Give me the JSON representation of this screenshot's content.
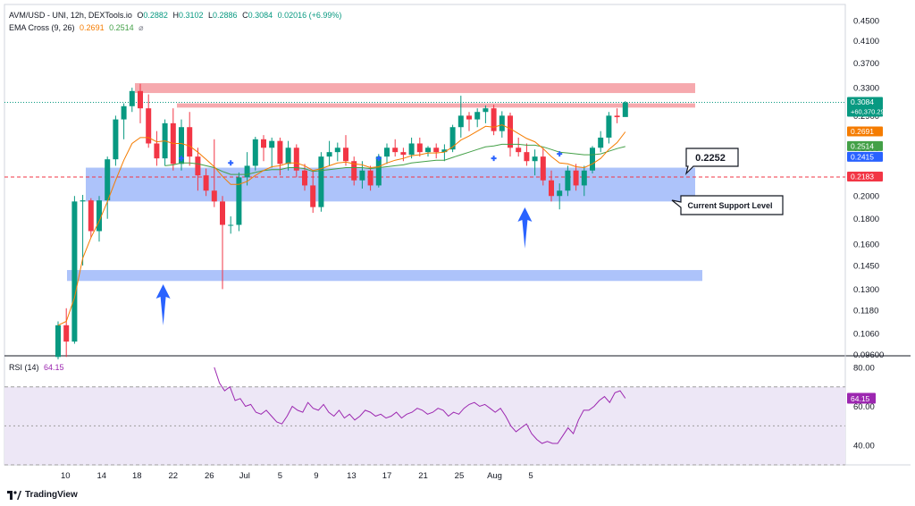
{
  "header": {
    "symbol": "AVM/USD - UNI, 12h, DEXTools.io",
    "o_label": "O",
    "o": "0.2882",
    "h_label": "H",
    "h": "0.3102",
    "l_label": "L",
    "l": "0.2886",
    "c_label": "C",
    "c": "0.3084",
    "change": "0.02016 (+6.99%)",
    "ema_label": "EMA Cross (9, 26)",
    "ema_fast": "0.2691",
    "ema_slow": "0.2514",
    "ema_icon": "⌀"
  },
  "rsi": {
    "label": "RSI (14)",
    "value": "64.15"
  },
  "footer": {
    "brand": "TradingView",
    "logo_icon": "tradingview-logo"
  },
  "colors": {
    "up": "#089981",
    "down": "#f23645",
    "ema_fast": "#f57c00",
    "ema_slow": "#43a047",
    "rsi": "#9c27b0",
    "support": "#a4bdf9",
    "resistance": "#f5a0a5",
    "arrow": "#2962ff"
  },
  "chart_data": [
    {
      "type": "candlestick",
      "scale": "log",
      "x_tick_labels": [
        "10",
        "14",
        "18",
        "22",
        "26",
        "Jul",
        "5",
        "9",
        "13",
        "17",
        "21",
        "25",
        "Aug",
        "5"
      ],
      "y_tick_labels": [
        "0.4500",
        "0.4100",
        "0.3700",
        "0.3300",
        "0.2900",
        "0.2500",
        "0.2000",
        "0.1800",
        "0.1600",
        "0.1450",
        "0.1300",
        "0.1180",
        "0.1060",
        "0.09600"
      ],
      "ylim": [
        0.0955,
        0.485
      ],
      "price_labels": [
        {
          "value": "0.3084",
          "sub": "+60,370.29%",
          "color": "#089981"
        },
        {
          "value": "0.2691",
          "color": "#f57c00"
        },
        {
          "value": "0.2514",
          "color": "#43a047"
        },
        {
          "value": "0.2415",
          "color": "#2962ff"
        },
        {
          "value": "0.2183",
          "color": "#f23645"
        }
      ],
      "annotations": [
        {
          "text": "0.2252",
          "type": "callout"
        },
        {
          "text": "Current Support Level",
          "type": "callout"
        }
      ],
      "zones": [
        {
          "kind": "resistance",
          "from_bar": 0,
          "to_bar": 69,
          "low": 0.322,
          "high": 0.337
        },
        {
          "kind": "resistance",
          "from_bar": 6,
          "to_bar": 69,
          "low": 0.301,
          "high": 0.307
        },
        {
          "kind": "support",
          "from_bar": 1,
          "to_bar": 69,
          "low": 0.195,
          "high": 0.228
        },
        {
          "kind": "support",
          "from_bar": -4,
          "to_bar": 70,
          "low": 0.135,
          "high": 0.142
        }
      ],
      "arrows": [
        {
          "bar": 13,
          "value": 0.135
        },
        {
          "bar": 57,
          "value": 0.189
        }
      ],
      "markers": [
        {
          "bar": 15,
          "value": 0.238
        },
        {
          "bar": 21,
          "value": 0.233
        },
        {
          "bar": 39,
          "value": 0.238
        },
        {
          "bar": 53,
          "value": 0.238
        },
        {
          "bar": 61,
          "value": 0.243
        }
      ],
      "last_price_line": 0.3084,
      "dashed_level": 0.2183,
      "candles": [
        {
          "o": 0.095,
          "h": 0.112,
          "l": 0.094,
          "c": 0.11
        },
        {
          "o": 0.11,
          "h": 0.119,
          "l": 0.095,
          "c": 0.102
        },
        {
          "o": 0.102,
          "h": 0.2,
          "l": 0.101,
          "c": 0.195
        },
        {
          "o": 0.195,
          "h": 0.201,
          "l": 0.145,
          "c": 0.196
        },
        {
          "o": 0.196,
          "h": 0.198,
          "l": 0.165,
          "c": 0.17
        },
        {
          "o": 0.17,
          "h": 0.2,
          "l": 0.162,
          "c": 0.196
        },
        {
          "o": 0.196,
          "h": 0.24,
          "l": 0.18,
          "c": 0.237
        },
        {
          "o": 0.237,
          "h": 0.29,
          "l": 0.23,
          "c": 0.285
        },
        {
          "o": 0.285,
          "h": 0.307,
          "l": 0.26,
          "c": 0.303
        },
        {
          "o": 0.303,
          "h": 0.33,
          "l": 0.295,
          "c": 0.325
        },
        {
          "o": 0.325,
          "h": 0.336,
          "l": 0.28,
          "c": 0.3
        },
        {
          "o": 0.3,
          "h": 0.32,
          "l": 0.25,
          "c": 0.255
        },
        {
          "o": 0.255,
          "h": 0.27,
          "l": 0.23,
          "c": 0.238
        },
        {
          "o": 0.238,
          "h": 0.285,
          "l": 0.23,
          "c": 0.28
        },
        {
          "o": 0.28,
          "h": 0.3,
          "l": 0.225,
          "c": 0.232
        },
        {
          "o": 0.232,
          "h": 0.285,
          "l": 0.225,
          "c": 0.275
        },
        {
          "o": 0.275,
          "h": 0.295,
          "l": 0.23,
          "c": 0.24
        },
        {
          "o": 0.24,
          "h": 0.25,
          "l": 0.205,
          "c": 0.22
        },
        {
          "o": 0.22,
          "h": 0.227,
          "l": 0.2,
          "c": 0.205
        },
        {
          "o": 0.205,
          "h": 0.26,
          "l": 0.19,
          "c": 0.195
        },
        {
          "o": 0.195,
          "h": 0.2,
          "l": 0.13,
          "c": 0.175
        },
        {
          "o": 0.175,
          "h": 0.182,
          "l": 0.168,
          "c": 0.175
        },
        {
          "o": 0.175,
          "h": 0.223,
          "l": 0.17,
          "c": 0.218
        },
        {
          "o": 0.218,
          "h": 0.245,
          "l": 0.21,
          "c": 0.23
        },
        {
          "o": 0.23,
          "h": 0.263,
          "l": 0.225,
          "c": 0.26
        },
        {
          "o": 0.26,
          "h": 0.265,
          "l": 0.235,
          "c": 0.25
        },
        {
          "o": 0.25,
          "h": 0.262,
          "l": 0.228,
          "c": 0.258
        },
        {
          "o": 0.258,
          "h": 0.262,
          "l": 0.22,
          "c": 0.232
        },
        {
          "o": 0.232,
          "h": 0.258,
          "l": 0.225,
          "c": 0.25
        },
        {
          "o": 0.25,
          "h": 0.254,
          "l": 0.218,
          "c": 0.225
        },
        {
          "o": 0.225,
          "h": 0.232,
          "l": 0.205,
          "c": 0.21
        },
        {
          "o": 0.21,
          "h": 0.225,
          "l": 0.185,
          "c": 0.19
        },
        {
          "o": 0.19,
          "h": 0.245,
          "l": 0.186,
          "c": 0.24
        },
        {
          "o": 0.24,
          "h": 0.258,
          "l": 0.23,
          "c": 0.245
        },
        {
          "o": 0.245,
          "h": 0.256,
          "l": 0.235,
          "c": 0.25
        },
        {
          "o": 0.25,
          "h": 0.265,
          "l": 0.23,
          "c": 0.235
        },
        {
          "o": 0.235,
          "h": 0.24,
          "l": 0.21,
          "c": 0.215
        },
        {
          "o": 0.215,
          "h": 0.235,
          "l": 0.207,
          "c": 0.225
        },
        {
          "o": 0.225,
          "h": 0.23,
          "l": 0.205,
          "c": 0.21
        },
        {
          "o": 0.21,
          "h": 0.243,
          "l": 0.208,
          "c": 0.24
        },
        {
          "o": 0.24,
          "h": 0.255,
          "l": 0.232,
          "c": 0.25
        },
        {
          "o": 0.25,
          "h": 0.26,
          "l": 0.24,
          "c": 0.245
        },
        {
          "o": 0.245,
          "h": 0.25,
          "l": 0.235,
          "c": 0.242
        },
        {
          "o": 0.242,
          "h": 0.262,
          "l": 0.238,
          "c": 0.255
        },
        {
          "o": 0.255,
          "h": 0.262,
          "l": 0.24,
          "c": 0.245
        },
        {
          "o": 0.245,
          "h": 0.252,
          "l": 0.24,
          "c": 0.25
        },
        {
          "o": 0.25,
          "h": 0.255,
          "l": 0.238,
          "c": 0.245
        },
        {
          "o": 0.245,
          "h": 0.254,
          "l": 0.235,
          "c": 0.248
        },
        {
          "o": 0.248,
          "h": 0.278,
          "l": 0.245,
          "c": 0.275
        },
        {
          "o": 0.275,
          "h": 0.318,
          "l": 0.262,
          "c": 0.29
        },
        {
          "o": 0.29,
          "h": 0.295,
          "l": 0.27,
          "c": 0.285
        },
        {
          "o": 0.285,
          "h": 0.3,
          "l": 0.275,
          "c": 0.295
        },
        {
          "o": 0.295,
          "h": 0.304,
          "l": 0.28,
          "c": 0.3
        },
        {
          "o": 0.3,
          "h": 0.305,
          "l": 0.265,
          "c": 0.27
        },
        {
          "o": 0.27,
          "h": 0.296,
          "l": 0.262,
          "c": 0.29
        },
        {
          "o": 0.29,
          "h": 0.294,
          "l": 0.24,
          "c": 0.25
        },
        {
          "o": 0.25,
          "h": 0.262,
          "l": 0.24,
          "c": 0.245
        },
        {
          "o": 0.245,
          "h": 0.255,
          "l": 0.23,
          "c": 0.235
        },
        {
          "o": 0.235,
          "h": 0.248,
          "l": 0.22,
          "c": 0.24
        },
        {
          "o": 0.24,
          "h": 0.25,
          "l": 0.21,
          "c": 0.215
        },
        {
          "o": 0.215,
          "h": 0.225,
          "l": 0.195,
          "c": 0.2
        },
        {
          "o": 0.2,
          "h": 0.212,
          "l": 0.188,
          "c": 0.205
        },
        {
          "o": 0.205,
          "h": 0.23,
          "l": 0.2,
          "c": 0.225
        },
        {
          "o": 0.225,
          "h": 0.232,
          "l": 0.205,
          "c": 0.21
        },
        {
          "o": 0.21,
          "h": 0.23,
          "l": 0.2,
          "c": 0.225
        },
        {
          "o": 0.225,
          "h": 0.252,
          "l": 0.222,
          "c": 0.25
        },
        {
          "o": 0.25,
          "h": 0.27,
          "l": 0.245,
          "c": 0.262
        },
        {
          "o": 0.262,
          "h": 0.295,
          "l": 0.255,
          "c": 0.29
        },
        {
          "o": 0.29,
          "h": 0.3,
          "l": 0.28,
          "c": 0.288
        },
        {
          "o": 0.2882,
          "h": 0.3102,
          "l": 0.2886,
          "c": 0.3084
        }
      ],
      "ema_fast": [
        0.11,
        0.112,
        0.125,
        0.15,
        0.165,
        0.178,
        0.195,
        0.215,
        0.236,
        0.255,
        0.262,
        0.262,
        0.257,
        0.258,
        0.255,
        0.255,
        0.252,
        0.245,
        0.237,
        0.229,
        0.219,
        0.211,
        0.211,
        0.214,
        0.22,
        0.225,
        0.229,
        0.23,
        0.233,
        0.233,
        0.23,
        0.225,
        0.227,
        0.23,
        0.233,
        0.234,
        0.232,
        0.231,
        0.228,
        0.229,
        0.233,
        0.236,
        0.238,
        0.241,
        0.242,
        0.244,
        0.244,
        0.245,
        0.251,
        0.259,
        0.264,
        0.27,
        0.276,
        0.275,
        0.278,
        0.273,
        0.267,
        0.261,
        0.257,
        0.249,
        0.24,
        0.233,
        0.232,
        0.229,
        0.228,
        0.232,
        0.238,
        0.248,
        0.256,
        0.2691
      ],
      "ema_slow": [
        null,
        null,
        null,
        null,
        null,
        null,
        null,
        null,
        null,
        null,
        null,
        null,
        null,
        0.23,
        0.231,
        0.233,
        0.233,
        0.232,
        0.23,
        0.228,
        0.224,
        0.221,
        0.221,
        0.221,
        0.223,
        0.225,
        0.226,
        0.226,
        0.228,
        0.228,
        0.227,
        0.224,
        0.225,
        0.226,
        0.227,
        0.228,
        0.228,
        0.228,
        0.227,
        0.228,
        0.229,
        0.23,
        0.231,
        0.233,
        0.234,
        0.235,
        0.236,
        0.236,
        0.239,
        0.242,
        0.245,
        0.248,
        0.251,
        0.252,
        0.254,
        0.254,
        0.254,
        0.253,
        0.253,
        0.251,
        0.248,
        0.245,
        0.244,
        0.243,
        0.242,
        0.242,
        0.243,
        0.246,
        0.249,
        0.2514
      ]
    },
    {
      "type": "line",
      "name": "RSI (14)",
      "y_tick_labels": [
        "80.00",
        "60.00",
        "40.00"
      ],
      "ylim": [
        30,
        85
      ],
      "bands": [
        70,
        50,
        30
      ],
      "x_start_bar": 19,
      "values": [
        80,
        72,
        68,
        70,
        63,
        64,
        60,
        61,
        57,
        56,
        58,
        55,
        52,
        51,
        55,
        60,
        58,
        57,
        62,
        59,
        58,
        61,
        57,
        55,
        58,
        54,
        56,
        53,
        55,
        58,
        57,
        55,
        56,
        54,
        55,
        57,
        54,
        56,
        57,
        59,
        58,
        56,
        57,
        59,
        58,
        55,
        57,
        56,
        59,
        61,
        62,
        60,
        61,
        59,
        57,
        59,
        55,
        50,
        47,
        49,
        51,
        46,
        43,
        41,
        42,
        41,
        41,
        45,
        49,
        46,
        53,
        58,
        58,
        60,
        63,
        65,
        62,
        67,
        68,
        64.15
      ]
    }
  ]
}
